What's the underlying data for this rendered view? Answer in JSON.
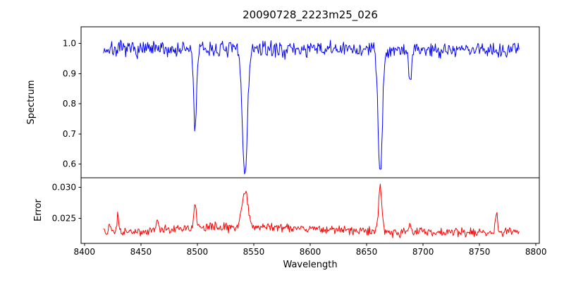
{
  "title": "20090728_2223m25_026",
  "chart_data": {
    "type": "line",
    "title": "20090728_2223m25_026",
    "xlabel": "Wavelength",
    "x_range": [
      8397,
      8803
    ],
    "x_ticks": [
      8400,
      8450,
      8500,
      8550,
      8600,
      8650,
      8700,
      8750,
      8800
    ],
    "x_tick_labels": [
      "8400",
      "8450",
      "8500",
      "8550",
      "8600",
      "8650",
      "8700",
      "8750",
      "8800"
    ],
    "x_data_range": [
      8417,
      8785
    ],
    "grid": false,
    "legend": "none",
    "panels": [
      {
        "name": "spectrum",
        "ylabel": "Spectrum",
        "ylim": [
          0.555,
          1.055
        ],
        "y_ticks": [
          0.6,
          0.7,
          0.8,
          0.9,
          1.0
        ],
        "y_tick_labels": [
          "0.6",
          "0.7",
          "0.8",
          "0.9",
          "1.0"
        ],
        "color": "#0000ff",
        "baseline": 0.98,
        "noise_sigma": 0.013,
        "clamp_min": 0.557,
        "clamp_max": 1.035,
        "features": [
          {
            "center": 8498.0,
            "amplitude": -0.26,
            "width": 1.3
          },
          {
            "center": 8542.1,
            "amplitude": -0.415,
            "width": 2.2
          },
          {
            "center": 8662.1,
            "amplitude": -0.4,
            "width": 1.9
          },
          {
            "center": 8688.6,
            "amplitude": -0.12,
            "width": 1.1
          }
        ]
      },
      {
        "name": "error",
        "ylabel": "Error",
        "ylim": [
          0.021,
          0.0315
        ],
        "y_ticks": [
          0.025,
          0.03
        ],
        "y_tick_labels": [
          "0.025",
          "0.030"
        ],
        "color": "#ff0000",
        "baseline": 0.0228,
        "noise_sigma": 0.00035,
        "clamp_min": 0.0216,
        "clamp_max": 0.0306,
        "features": [
          {
            "center": 8548.0,
            "amplitude": 0.0009,
            "width": 55.0
          },
          {
            "center": 8422.0,
            "amplitude": 0.0013,
            "width": 0.8
          },
          {
            "center": 8429.5,
            "amplitude": 0.0028,
            "width": 0.9
          },
          {
            "center": 8464.5,
            "amplitude": 0.0021,
            "width": 0.9
          },
          {
            "center": 8498.0,
            "amplitude": 0.004,
            "width": 1.2
          },
          {
            "center": 8542.1,
            "amplitude": 0.0058,
            "width": 2.6
          },
          {
            "center": 8662.1,
            "amplitude": 0.0075,
            "width": 1.4
          },
          {
            "center": 8688.6,
            "amplitude": 0.0013,
            "width": 1.0
          },
          {
            "center": 8765.0,
            "amplitude": 0.0033,
            "width": 1.0
          }
        ]
      }
    ]
  }
}
